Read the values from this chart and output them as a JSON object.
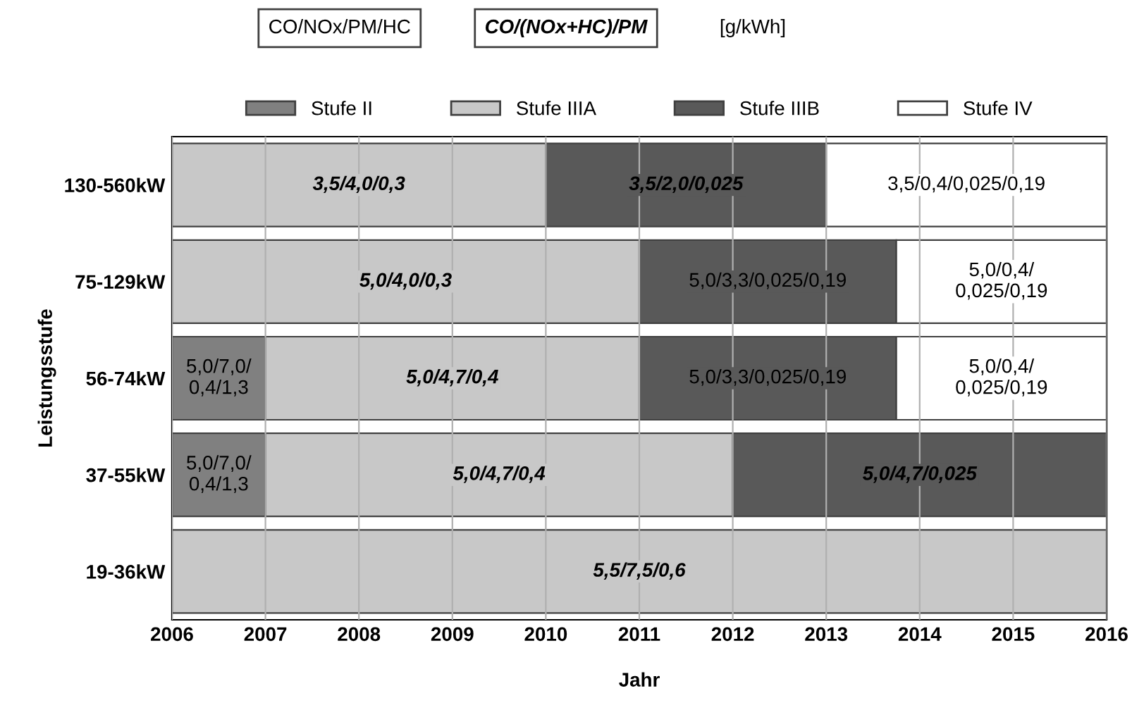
{
  "chart_data": {
    "type": "bar",
    "orientation": "horizontal",
    "xlabel": "Jahr",
    "ylabel": "Leistungsstufe",
    "categories": [
      "130-560kW",
      "75-129kW",
      "56-74kW",
      "37-55kW",
      "19-36kW"
    ],
    "xlim": [
      2006,
      2016
    ],
    "xticks": [
      2006,
      2007,
      2008,
      2009,
      2010,
      2011,
      2012,
      2013,
      2014,
      2015,
      2016
    ],
    "grid": "x",
    "legend": "top",
    "annotations": [
      "CO/NOx/PM/HC",
      "CO/(NOx+HC)/PM",
      "[g/kWh]"
    ],
    "series": [
      {
        "name": "Stufe II",
        "color": "#808080",
        "base": [
          null,
          null,
          2006,
          2006,
          null
        ],
        "values": [
          null,
          null,
          1,
          1,
          null
        ],
        "value_labels": [
          null,
          null,
          "5,0/7,0/\n0,4/1,3",
          "5,0/7,0/\n0,4/1,3",
          null
        ]
      },
      {
        "name": "Stufe IIIA",
        "color": "#c8c8c8",
        "base": [
          2006,
          2006,
          2007,
          2007,
          2006
        ],
        "values": [
          4,
          5,
          4,
          5,
          10
        ],
        "value_labels": [
          "3,5/4,0/0,3",
          "5,0/4,0/0,3",
          "5,0/4,7/0,4",
          "5,0/4,7/0,4",
          "5,5/7,5/0,6"
        ]
      },
      {
        "name": "Stufe IIIB",
        "color": "#595959",
        "base": [
          2010,
          2011,
          2011,
          2012,
          null
        ],
        "values": [
          3,
          2.75,
          2.75,
          4,
          null
        ],
        "value_labels": [
          "3,5/2,0/0,025",
          "5,0/3,3/0,025/0,19",
          "5,0/3,3/0,025/0,19",
          "5,0/4,7/0,025",
          null
        ]
      },
      {
        "name": "Stufe IV",
        "color": "#ffffff",
        "base": [
          2013,
          2013.75,
          2013.75,
          null,
          null
        ],
        "values": [
          3,
          2.25,
          2.25,
          null,
          null
        ],
        "value_labels": [
          "3,5/0,4/0,025/0,19",
          "5,0/0,4/\n0,025/0,19",
          "5,0/0,4/\n0,025/0,19",
          null,
          null
        ]
      }
    ]
  }
}
